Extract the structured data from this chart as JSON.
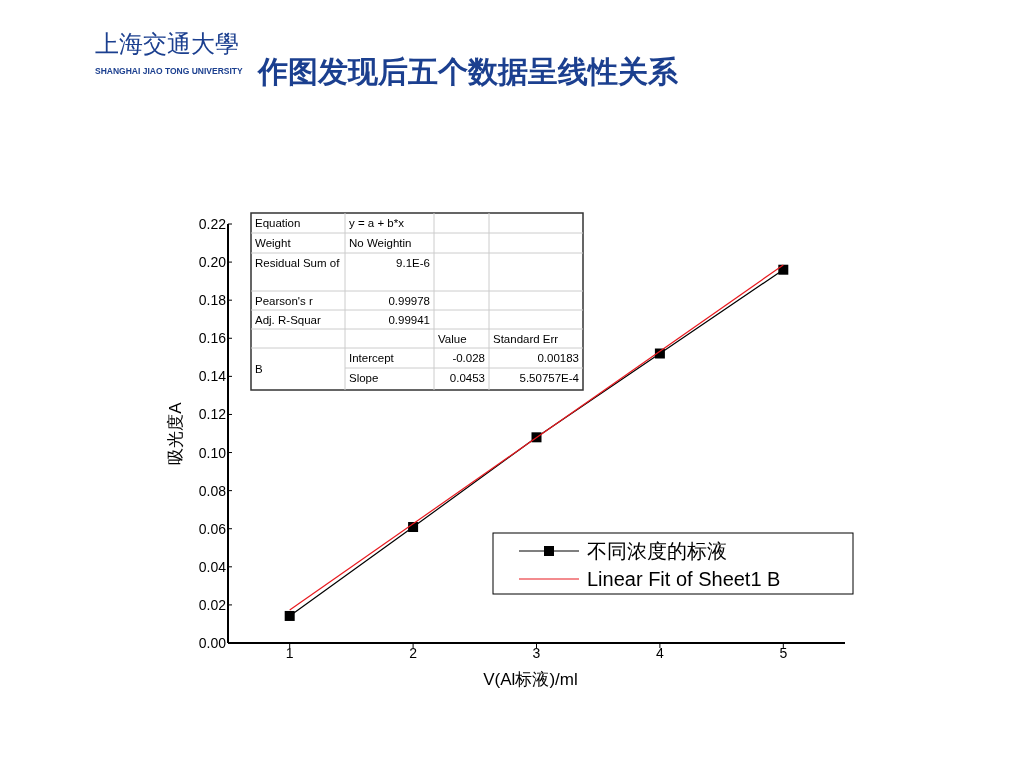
{
  "chart_data": {
    "type": "line",
    "title": "作图发现后五个数据呈线性关系",
    "xlabel": "V(Al标液)/ml",
    "ylabel": "吸光度A",
    "x": [
      1,
      2,
      3,
      4,
      5
    ],
    "series": [
      {
        "name": "不同浓度的标液",
        "color": "#000000",
        "values": [
          0.0142,
          0.0609,
          0.108,
          0.152,
          0.196
        ],
        "marker": "square"
      },
      {
        "name": "Linear Fit of Sheet1 B",
        "color": "#e8191e",
        "type": "line",
        "x": [
          1,
          5
        ],
        "values": [
          0.0173,
          0.1985
        ],
        "marker": "none"
      }
    ],
    "xlim": [
      0.5,
      5.5
    ],
    "xticks": [
      1,
      2,
      3,
      4,
      5
    ],
    "ylim": [
      0,
      0.22
    ],
    "yticks": [
      {
        "value": 0,
        "label": "0.00"
      },
      {
        "value": 0.02,
        "label": "0.02"
      },
      {
        "value": 0.04,
        "label": "0.04"
      },
      {
        "value": 0.06,
        "label": "0.06"
      },
      {
        "value": 0.08,
        "label": "0.08"
      },
      {
        "value": 0.1,
        "label": "0.10"
      },
      {
        "value": 0.12,
        "label": "0.12"
      },
      {
        "value": 0.14,
        "label": "0.14"
      },
      {
        "value": 0.16,
        "label": "0.16"
      },
      {
        "value": 0.18,
        "label": "0.18"
      },
      {
        "value": 0.2,
        "label": "0.20"
      },
      {
        "value": 0.22,
        "label": "0.22"
      }
    ],
    "legend": "bottom right",
    "annotations": [
      "上海交通大學",
      "SHANGHAI JIAO TONG UNIVERSITY",
      "Equation",
      "y = a + b*x",
      "Weight",
      "No Weightin",
      "Residual Sum of",
      "9.1E-6",
      "Pearson's r",
      "0.99978",
      "Adj. R-Squar",
      "0.99941",
      "Value",
      "Standard Err",
      "B",
      "Intercept",
      "-0.028",
      "0.00183",
      "Slope",
      "0.0453",
      "5.50757E-4"
    ]
  }
}
